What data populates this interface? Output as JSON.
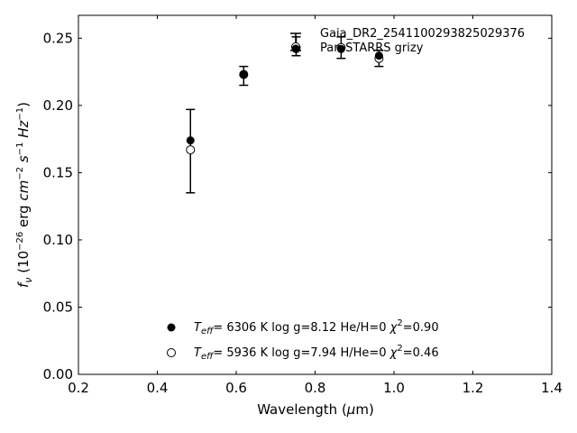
{
  "chart_data": {
    "type": "scatter",
    "xlabel": "Wavelength (μm)",
    "ylabel": "fν (10⁻²⁶ erg cm⁻² s⁻¹ Hz⁻¹)",
    "xlim": [
      0.2,
      1.4
    ],
    "ylim": [
      0.0,
      0.267
    ],
    "x_ticks": [
      "0.2",
      "0.4",
      "0.6",
      "0.8",
      "1.0",
      "1.2",
      "1.4"
    ],
    "y_ticks": [
      "0.00",
      "0.05",
      "0.10",
      "0.15",
      "0.20",
      "0.25"
    ],
    "grid": false,
    "legend_placement": "top-right",
    "observed": {
      "name": "Gaia_DR2_2541100293825029376 Pan-STARRS grizy",
      "x": [
        0.484,
        0.619,
        0.752,
        0.866,
        0.962
      ],
      "y": [
        0.166,
        0.222,
        0.244,
        0.243,
        0.235
      ],
      "yerr": [
        0.031,
        0.007,
        0.007,
        0.008,
        0.006
      ]
    },
    "series": [
      {
        "name": "Teff= 6306 K log g=8.12 He/H=0 χ²=0.90",
        "marker": "filled",
        "x": [
          0.484,
          0.619,
          0.752,
          0.866,
          0.962
        ],
        "y": [
          0.174,
          0.223,
          0.242,
          0.242,
          0.237
        ]
      },
      {
        "name": "Teff= 5936 K log g=7.94 H/He=0 χ²=0.46",
        "marker": "open",
        "x": [
          0.484,
          0.619,
          0.752,
          0.866,
          0.962
        ],
        "y": [
          0.167,
          0.223,
          0.243,
          0.243,
          0.235
        ]
      }
    ]
  },
  "legend": {
    "line1": "Gaia_DR2_2541100293825029376",
    "line2": "Pan-STARRS grizy"
  },
  "models": [
    {
      "teff": "6306 K",
      "logg": "log g=8.12",
      "comp": "He/H=0",
      "chi2": "=0.90"
    },
    {
      "teff": "5936 K",
      "logg": "log g=7.94",
      "comp": "H/He=0",
      "chi2": "=0.46"
    }
  ],
  "colors": {
    "marker": "#000000",
    "open_fill": "#ffffff"
  }
}
